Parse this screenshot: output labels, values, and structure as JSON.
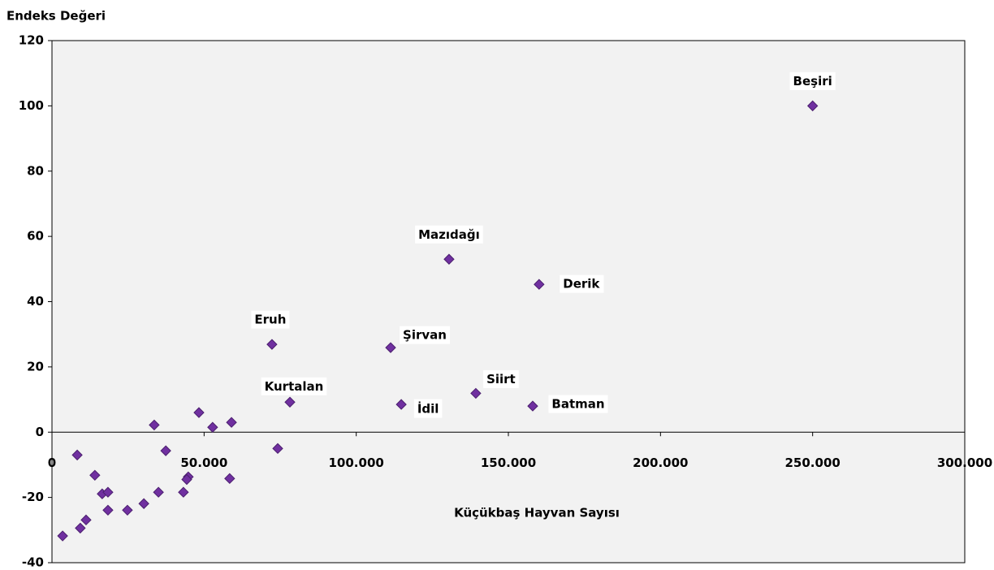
{
  "chart_data": {
    "type": "scatter",
    "title": "Endeks Değeri",
    "x_label": "Küçükbaş Hayvan Sayısı",
    "color": "#7030a0",
    "x": [
      250000,
      130500,
      160100,
      72300,
      111300,
      78200,
      114800,
      139300,
      158000,
      33600,
      48300,
      52800,
      59000,
      74200,
      37400,
      8300,
      14100,
      44800,
      44300,
      16500,
      18400,
      35000,
      43200,
      58400,
      18400,
      24800,
      30200,
      11200,
      9300,
      3500
    ],
    "y": [
      100,
      53,
      45.3,
      26.9,
      25.9,
      9.2,
      8.5,
      11.9,
      8,
      2.2,
      6,
      1.5,
      3,
      -5,
      -5.7,
      -7,
      -13.2,
      -13.7,
      -14.5,
      -18.9,
      -18.4,
      -18.4,
      -18.4,
      -14.2,
      -23.9,
      -23.9,
      -21.9,
      -26.9,
      -29.4,
      -31.8
    ],
    "point_labels": [
      "Beşiri",
      "Mazıdağı",
      "Derik",
      "Eruh",
      "Şirvan",
      "Kurtalan",
      "İdil",
      "Siirt",
      "Batman",
      null,
      null,
      null,
      null,
      null,
      null,
      null,
      null,
      null,
      null,
      null,
      null,
      null,
      null,
      null,
      null,
      null,
      null,
      null,
      null,
      null
    ],
    "xlim": [
      0,
      300000
    ],
    "ylim": [
      -40,
      120
    ],
    "xticks": [
      0,
      {
        "value": 50000,
        "label": "50.000"
      },
      {
        "value": 100000,
        "label": "100.000"
      },
      {
        "value": 150000,
        "label": "150.000"
      },
      {
        "value": 200000,
        "label": "200.000"
      },
      {
        "value": 250000,
        "label": "250.000"
      },
      {
        "value": 300000,
        "label": "300.000"
      }
    ],
    "yticks": [
      -40,
      -20,
      0,
      20,
      40,
      60,
      80,
      100,
      120
    ],
    "grid": false
  }
}
